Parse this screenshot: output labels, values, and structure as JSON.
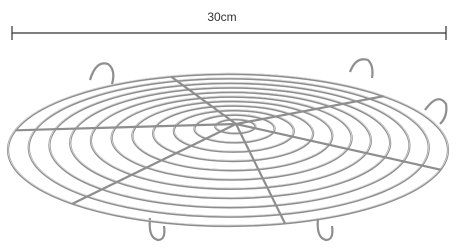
{
  "dimension_label": "30cm"
}
